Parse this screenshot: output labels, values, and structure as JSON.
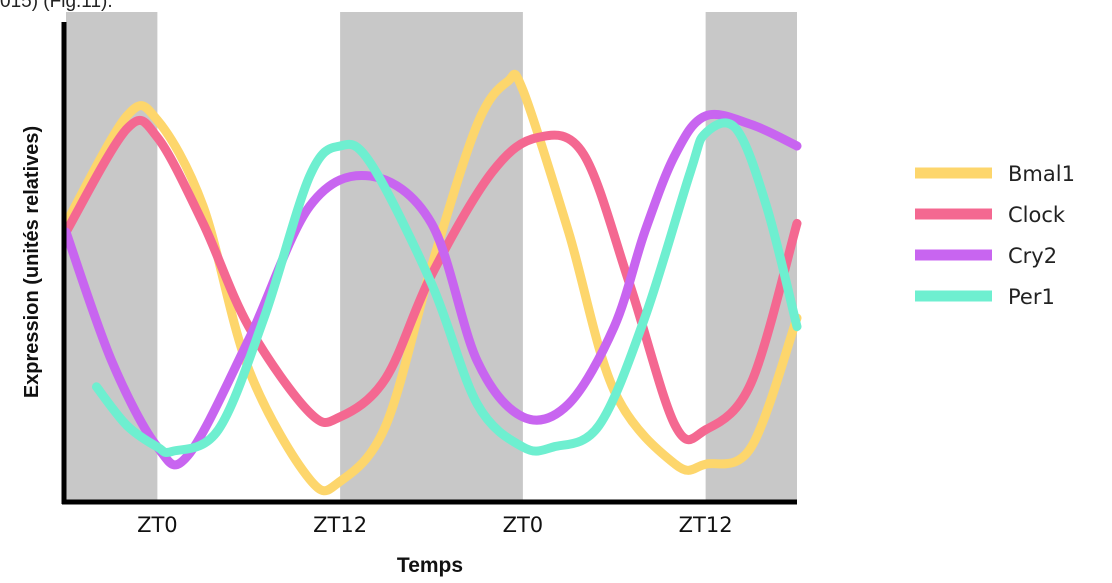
{
  "caption_fragment": "015) (Fig.11).",
  "chart_data": {
    "type": "line",
    "title": "",
    "xlabel": "Temps",
    "ylabel": "Expression (unités relatives)",
    "x_tick_labels": [
      "ZT0",
      "ZT12",
      "ZT0",
      "ZT12"
    ],
    "x_tick_values": [
      6,
      18,
      30,
      42
    ],
    "xlim": [
      0,
      48
    ],
    "ylim": [
      0,
      10
    ],
    "shaded_intervals": [
      [
        0,
        6
      ],
      [
        18,
        30
      ],
      [
        42,
        48
      ]
    ],
    "shade_color": "#c8c8c8",
    "legend_position": "right",
    "grid": false,
    "series": [
      {
        "name": "Bmal1",
        "color": "#fdd66c",
        "x": [
          0,
          4,
          6,
          9,
          12,
          16,
          18,
          21,
          24,
          27,
          29,
          30,
          33,
          36,
          40,
          42,
          45,
          48
        ],
        "y": [
          6.2,
          8.7,
          8.6,
          6.6,
          2.8,
          0.25,
          0.2,
          1.5,
          5.2,
          8.5,
          9.5,
          9.3,
          6.0,
          2.3,
          0.6,
          0.6,
          1.0,
          4.0
        ]
      },
      {
        "name": "Clock",
        "color": "#f46891",
        "x": [
          0,
          4,
          6,
          9,
          12,
          16,
          18,
          21,
          24,
          28,
          31,
          34,
          37,
          40,
          42,
          45,
          48
        ],
        "y": [
          6.0,
          8.4,
          8.2,
          6.2,
          3.8,
          1.8,
          1.7,
          2.6,
          5.0,
          7.4,
          8.2,
          7.8,
          4.8,
          1.5,
          1.4,
          2.5,
          6.2
        ]
      },
      {
        "name": "Cry2",
        "color": "#c865f0",
        "x": [
          0,
          3,
          6,
          8,
          12,
          16,
          20,
          24,
          27,
          30,
          33,
          36,
          38,
          40,
          42,
          45,
          48
        ],
        "y": [
          6.0,
          3.0,
          1.0,
          0.8,
          3.5,
          6.6,
          7.3,
          6.2,
          3.0,
          1.7,
          2.0,
          3.8,
          6.0,
          7.8,
          8.7,
          8.5,
          8.0
        ]
      },
      {
        "name": "Per1",
        "color": "#6eefd0",
        "x": [
          2,
          4,
          6,
          7,
          10,
          13,
          16,
          18,
          20,
          24,
          27,
          30,
          32,
          35,
          38,
          41,
          42,
          44,
          46,
          48
        ],
        "y": [
          2.4,
          1.5,
          1.0,
          0.9,
          1.4,
          4.0,
          7.3,
          8.0,
          7.6,
          4.8,
          2.0,
          1.0,
          1.0,
          1.5,
          4.0,
          7.4,
          8.3,
          8.4,
          6.6,
          3.8
        ]
      }
    ]
  }
}
